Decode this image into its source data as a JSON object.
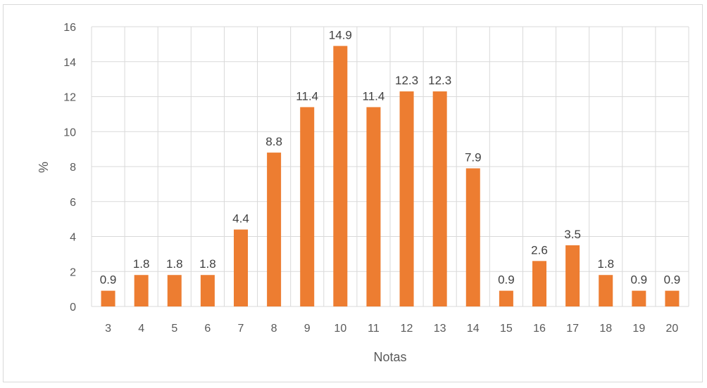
{
  "chart_data": {
    "type": "bar",
    "title": "",
    "xlabel": "Notas",
    "ylabel": "%",
    "ylim": [
      0,
      16
    ],
    "yticks": [
      0,
      2,
      4,
      6,
      8,
      10,
      12,
      14,
      16
    ],
    "grid": true,
    "legend": "none",
    "bar_color": "#ED7D31",
    "categories": [
      "3",
      "4",
      "5",
      "6",
      "7",
      "8",
      "9",
      "10",
      "11",
      "12",
      "13",
      "14",
      "15",
      "16",
      "17",
      "18",
      "19",
      "20"
    ],
    "values": [
      0.9,
      1.8,
      1.8,
      1.8,
      4.4,
      8.8,
      11.4,
      14.9,
      11.4,
      12.3,
      12.3,
      7.9,
      0.9,
      2.6,
      3.5,
      1.8,
      0.9,
      0.9
    ],
    "value_labels": [
      "0.9",
      "1.8",
      "1.8",
      "1.8",
      "4.4",
      "8.8",
      "11.4",
      "14.9",
      "11.4",
      "12.3",
      "12.3",
      "7.9",
      "0.9",
      "2.6",
      "3.5",
      "1.8",
      "0.9",
      "0.9"
    ]
  }
}
